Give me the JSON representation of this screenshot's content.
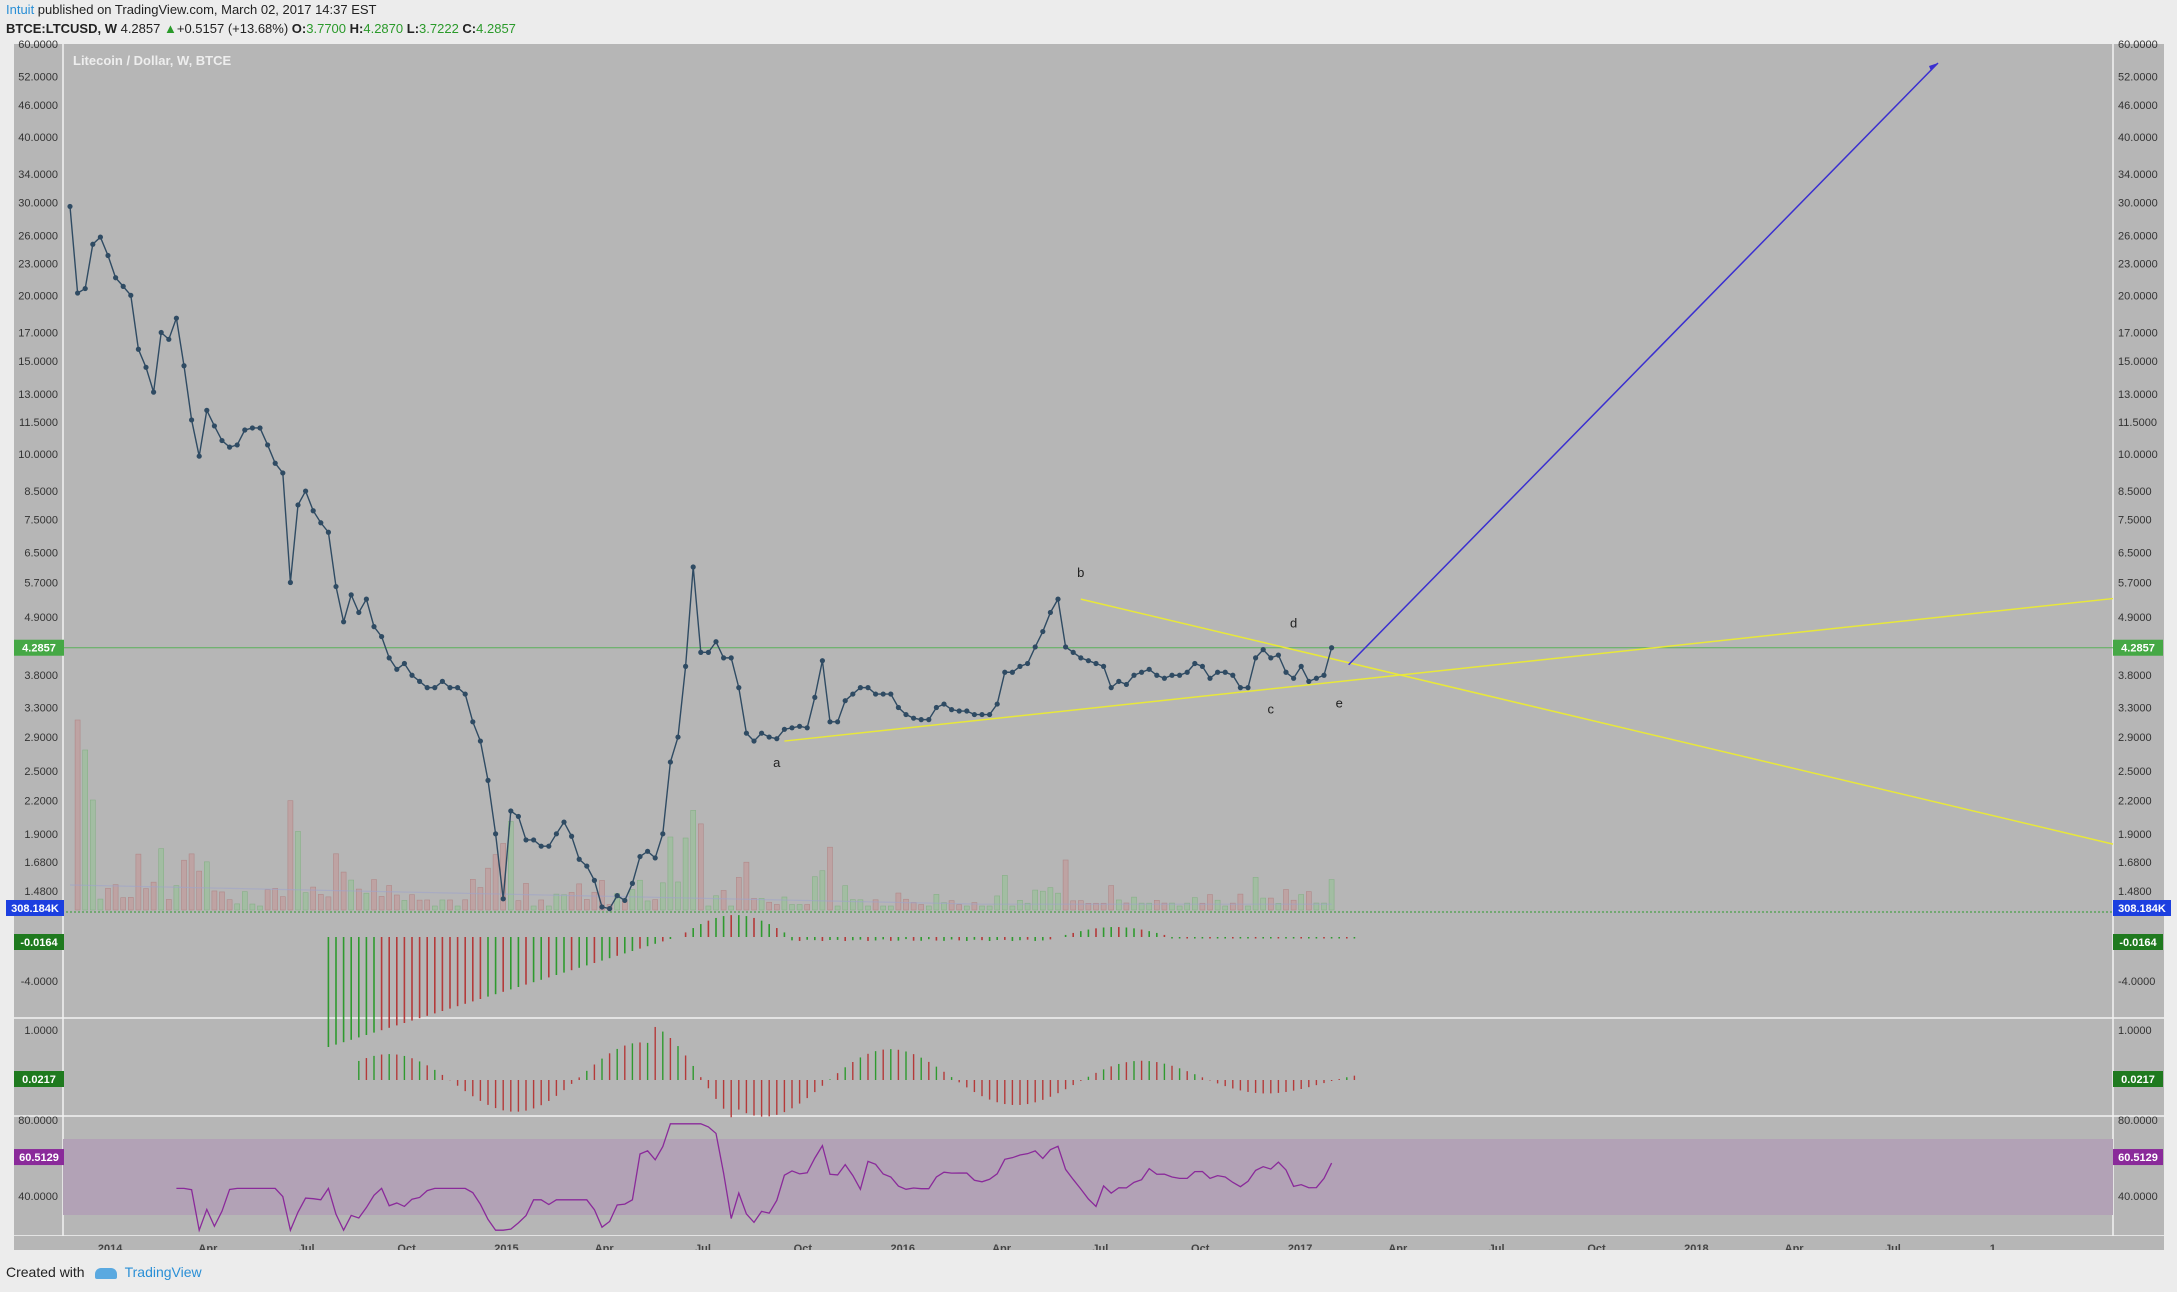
{
  "header": {
    "author": "Intuit",
    "published": " published on TradingView.com, March 02, 2017 14:37 EST",
    "symbol": "BTCE:LTCUSD, W",
    "last": "4.2857",
    "change": "+0.5157 (+13.68%)",
    "o_label": "O:",
    "o": "3.7700",
    "h_label": "H:",
    "h": "4.2870",
    "l_label": "L:",
    "l": "3.7222",
    "c_label": "C:",
    "c": "4.2857"
  },
  "footer": {
    "created": "Created with",
    "brand": "TradingView"
  },
  "colors": {
    "chart_bg": "#b6b6b6",
    "rsi_band": "#b2a2b6",
    "price_line": "#2f4b63",
    "trend_line": "#e8e83a",
    "arrow": "#3a2fd0",
    "up": "#2f9a2f",
    "down": "#b43a3a",
    "rsi_line": "#8a2a9a",
    "last_price_badge": "#45a845",
    "volume_badge": "#1c3fe0",
    "macd_badge": "#1f7a1f",
    "rsi_badge": "#8a2a9a"
  },
  "chart_data": {
    "type": "line",
    "title": "Litecoin / Dollar, W, BTCE",
    "scale": "log",
    "xlabel": "",
    "ylabel": "",
    "x_ticks": [
      "2014",
      "Apr",
      "Jul",
      "Oct",
      "2015",
      "Apr",
      "Jul",
      "Oct",
      "2016",
      "Apr",
      "Jul",
      "Oct",
      "2017",
      "Apr",
      "Jul",
      "Oct",
      "2018",
      "Apr",
      "Jul",
      "1"
    ],
    "y_ticks": [
      "60.0000",
      "52.0000",
      "46.0000",
      "40.0000",
      "34.0000",
      "30.0000",
      "26.0000",
      "23.0000",
      "20.0000",
      "17.0000",
      "15.0000",
      "13.0000",
      "11.5000",
      "10.0000",
      "8.5000",
      "7.5000",
      "6.5000",
      "5.7000",
      "4.9000",
      "3.8000",
      "3.3000",
      "2.9000",
      "2.5000",
      "2.2000",
      "1.9000",
      "1.6800",
      "1.4800"
    ],
    "y_tick_values": [
      60,
      52,
      46,
      40,
      34,
      30,
      26,
      23,
      20,
      17,
      15,
      13,
      11.5,
      10,
      8.5,
      7.5,
      6.5,
      5.7,
      4.9,
      3.8,
      3.3,
      2.9,
      2.5,
      2.2,
      1.9,
      1.68,
      1.48
    ],
    "ylim": [
      1.35,
      60
    ],
    "last_price_label": "4.2857",
    "volume_label": "308.184K",
    "series": [
      {
        "values": [
          29.5,
          20.2,
          20.6,
          25,
          25.8,
          23.8,
          21.6,
          20.8,
          20,
          15.8,
          14.6,
          13.1,
          17,
          16.5,
          18.1,
          14.7,
          11.6,
          9.9,
          12.1,
          11.3,
          10.6,
          10.3,
          10.4,
          11.1,
          11.2,
          11.2,
          10.4,
          9.6,
          9.2,
          5.7,
          8,
          8.5,
          7.8,
          7.4,
          7.1,
          5.6,
          4.8,
          5.4,
          5,
          5.3,
          4.7,
          4.5,
          4.1,
          3.9,
          4,
          3.8,
          3.7,
          3.6,
          3.6,
          3.7,
          3.6,
          3.6,
          3.5,
          3.1,
          2.85,
          2.4,
          1.9,
          1.43,
          2.1,
          2.05,
          1.85,
          1.85,
          1.8,
          1.8,
          1.9,
          2,
          1.88,
          1.7,
          1.65,
          1.55,
          1.38,
          1.37,
          1.45,
          1.42,
          1.53,
          1.72,
          1.76,
          1.71,
          1.9,
          2.6,
          2.9,
          3.95,
          6.1,
          4.2,
          4.2,
          4.4,
          4.1,
          4.1,
          3.6,
          2.95,
          2.85,
          2.95,
          2.9,
          2.88,
          3,
          3.02,
          3.04,
          3.02,
          3.45,
          4.05,
          3.1,
          3.1,
          3.4,
          3.5,
          3.6,
          3.6,
          3.5,
          3.5,
          3.5,
          3.3,
          3.2,
          3.15,
          3.13,
          3.13,
          3.3,
          3.35,
          3.27,
          3.25,
          3.25,
          3.2,
          3.2,
          3.2,
          3.35,
          3.85,
          3.85,
          3.95,
          4,
          4.3,
          4.6,
          5,
          5.3,
          4.3,
          4.2,
          4.1,
          4.05,
          4,
          3.95,
          3.6,
          3.7,
          3.65,
          3.8,
          3.85,
          3.9,
          3.8,
          3.75,
          3.8,
          3.8,
          3.85,
          4,
          3.95,
          3.75,
          3.85,
          3.85,
          3.8,
          3.6,
          3.6,
          4.1,
          4.25,
          4.1,
          4.15,
          3.85,
          3.75,
          3.95,
          3.7,
          3.75,
          3.8,
          4.2857
        ]
      }
    ],
    "annotations": [
      {
        "text": "a",
        "date": "2015-09-07",
        "value": 2.85
      },
      {
        "text": "b",
        "date": "2016-06-13",
        "value": 5.3
      },
      {
        "text": "c",
        "date": "2016-12-05",
        "value": 3.6
      },
      {
        "text": "d",
        "date": "2016-12-26",
        "value": 4.25
      },
      {
        "text": "e",
        "date": "2017-02-06",
        "value": 3.7
      }
    ],
    "macd": {
      "label": "-0.0164",
      "tick": "-4.0000"
    },
    "oscillator": {
      "label": "0.0217",
      "tick": "1.0000"
    },
    "rsi": {
      "label": "60.5129",
      "ticks": [
        "80.0000",
        "40.0000"
      ],
      "band": [
        30,
        70
      ],
      "ylim": [
        20,
        80
      ]
    }
  }
}
